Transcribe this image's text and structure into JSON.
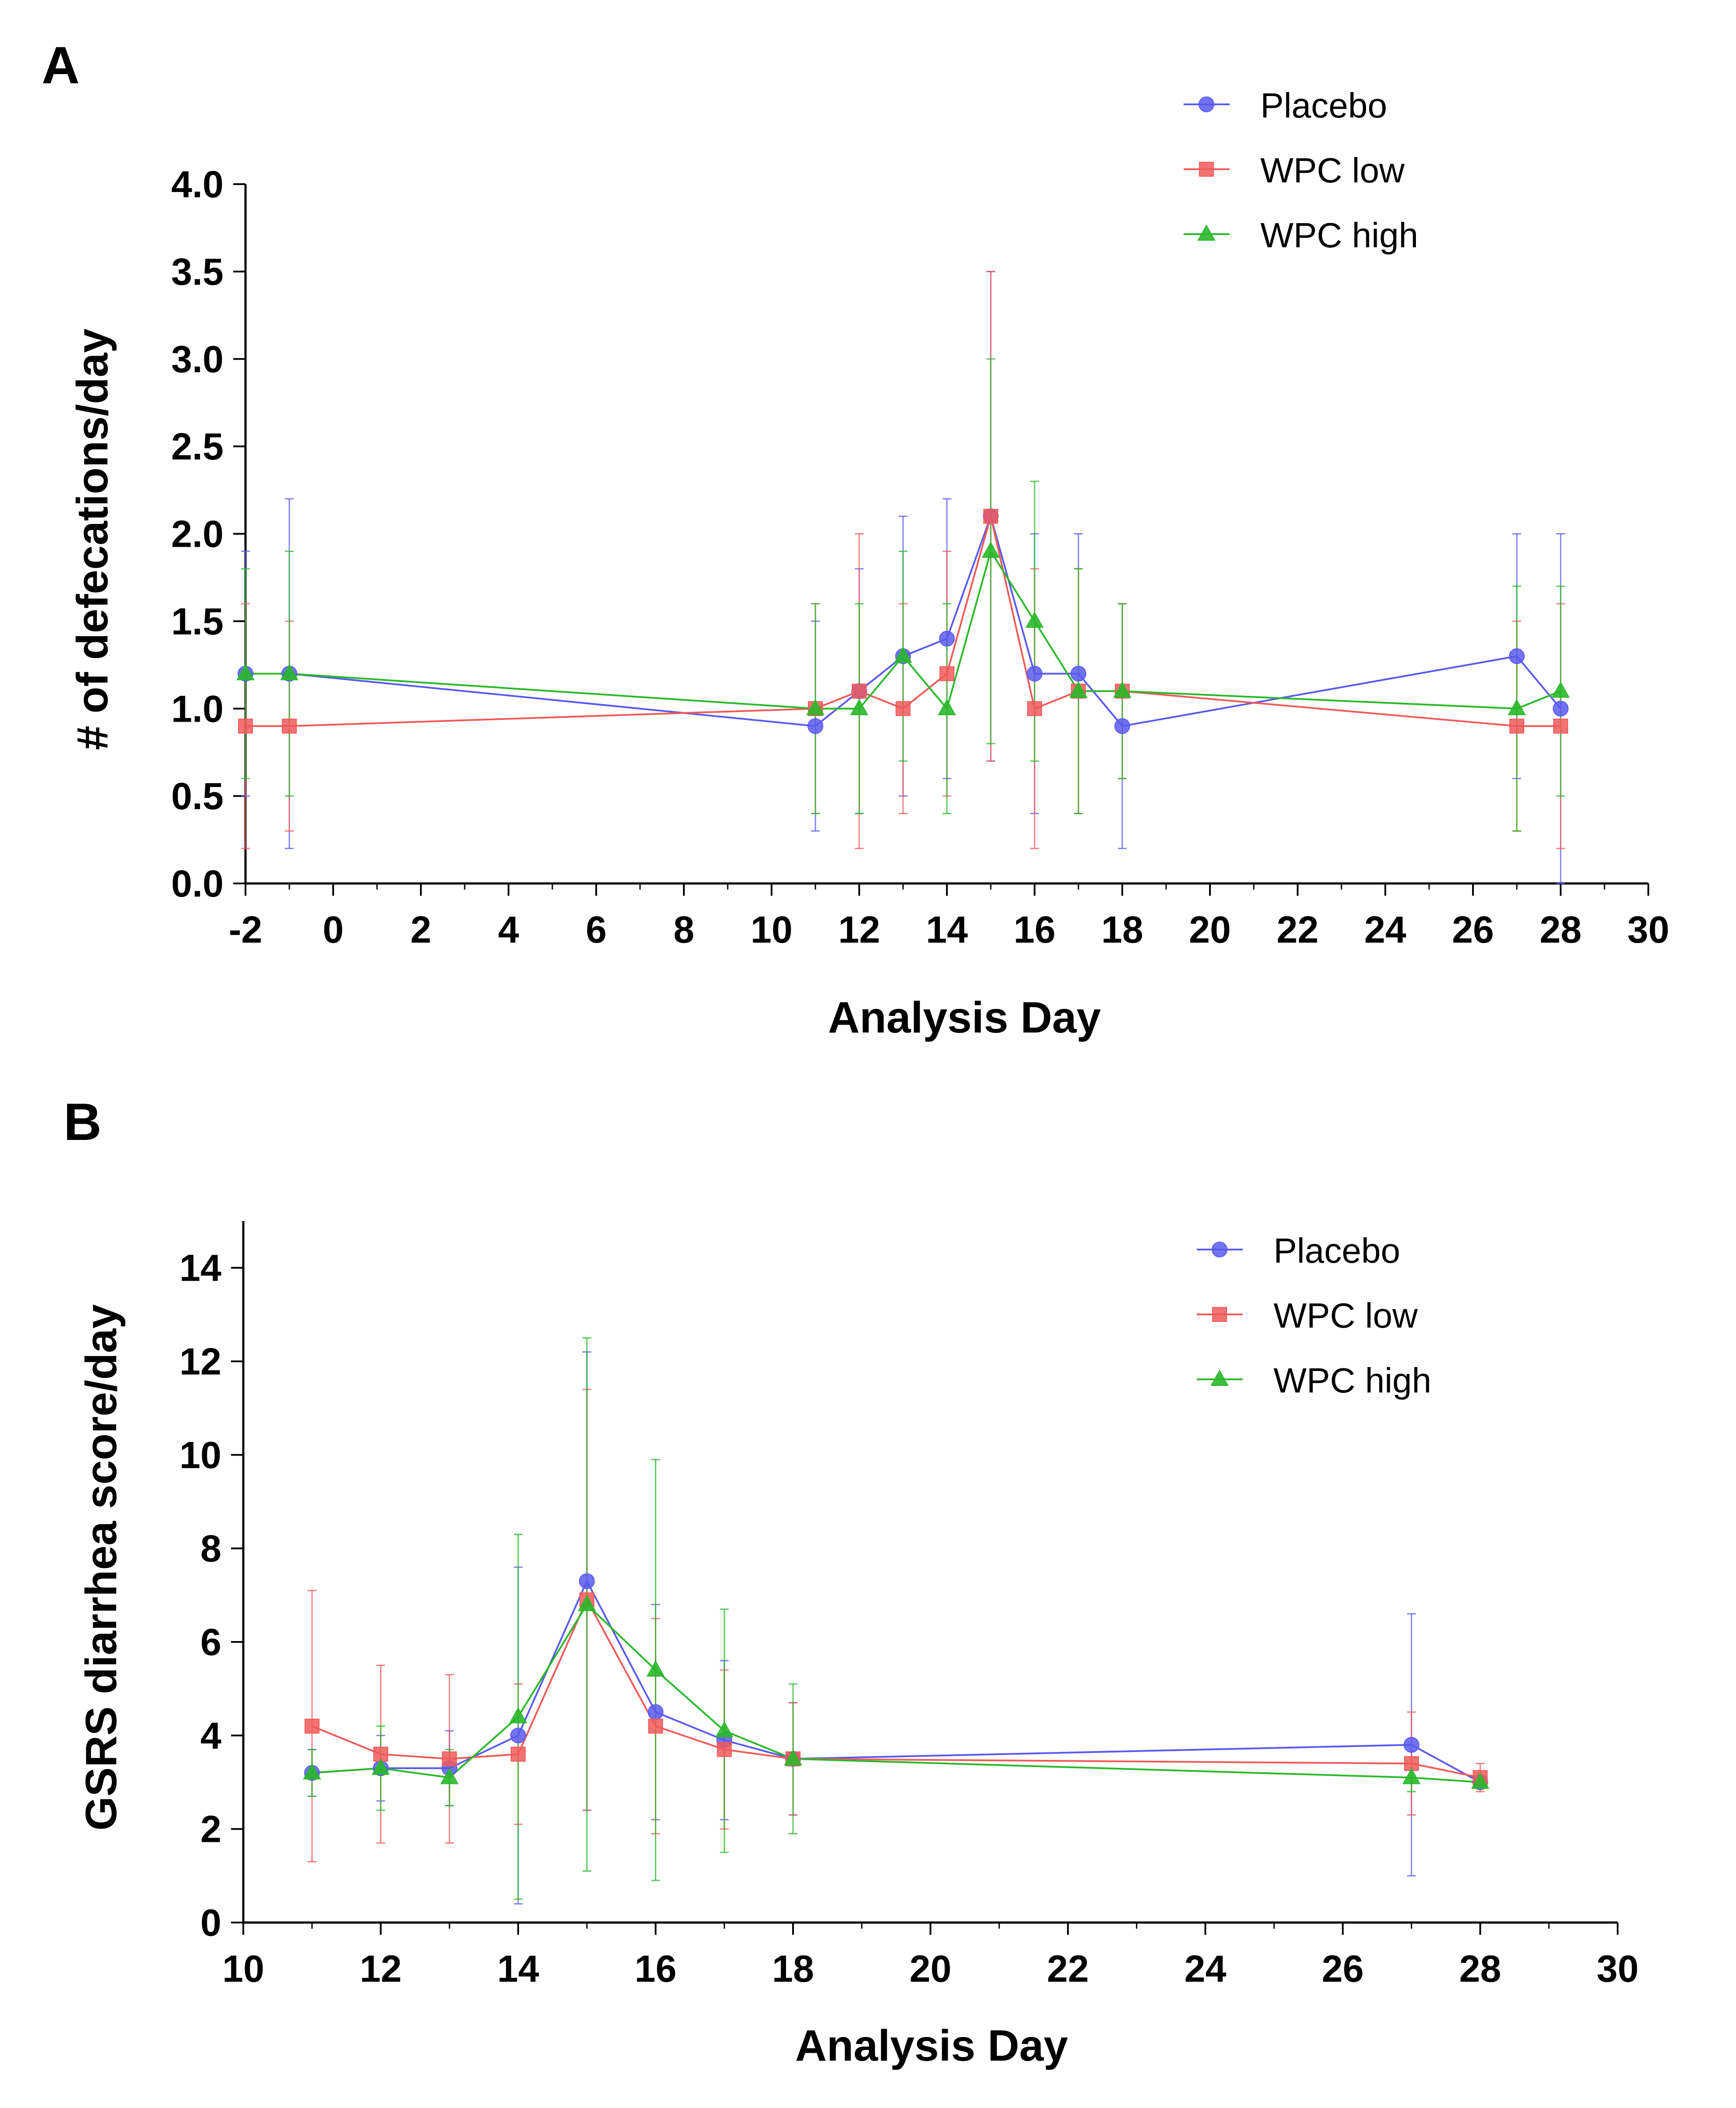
{
  "chart_data": [
    {
      "panel": "A",
      "type": "line",
      "xlabel": "Analysis Day",
      "ylabel": "# of defecations/day",
      "xlim": [
        -2,
        30
      ],
      "ylim": [
        0,
        4
      ],
      "xticks": [
        -2,
        0,
        2,
        4,
        6,
        8,
        10,
        12,
        14,
        16,
        18,
        20,
        22,
        24,
        26,
        28,
        30
      ],
      "xtick_labels": [
        "-2",
        "0",
        "2",
        "4",
        "6",
        "8",
        "10",
        "12",
        "14",
        "16",
        "18",
        "20",
        "22",
        "24",
        "26",
        "28",
        "30"
      ],
      "yticks": [
        0,
        0.5,
        1,
        1.5,
        2,
        2.5,
        3,
        3.5,
        4
      ],
      "ytick_labels": [
        "0.0",
        "0.5",
        "1.0",
        "1.5",
        "2.0",
        "2.5",
        "3.0",
        "3.5",
        "4.0"
      ],
      "legend_position": "top-right",
      "series": [
        {
          "name": "Placebo",
          "color": "#5a5af0",
          "marker": "circle",
          "x": [
            -2,
            -1,
            11,
            12,
            13,
            14,
            15,
            16,
            17,
            18,
            27,
            28
          ],
          "values": [
            1.2,
            1.2,
            0.9,
            1.1,
            1.3,
            1.4,
            2.1,
            1.2,
            1.2,
            0.9,
            1.3,
            1.0
          ],
          "err_low": [
            0.5,
            0.2,
            0.3,
            0.4,
            0.5,
            0.6,
            0.7,
            0.4,
            0.4,
            0.2,
            0.6,
            0.0
          ],
          "err_high": [
            1.9,
            2.2,
            1.5,
            1.8,
            2.1,
            2.2,
            3.5,
            2.0,
            2.0,
            1.6,
            2.0,
            2.0
          ]
        },
        {
          "name": "WPC low",
          "color": "#f05a5a",
          "marker": "square",
          "x": [
            -2,
            -1,
            11,
            12,
            13,
            14,
            15,
            16,
            17,
            18,
            27,
            28
          ],
          "values": [
            0.9,
            0.9,
            1.0,
            1.1,
            1.0,
            1.2,
            2.1,
            1.0,
            1.1,
            1.1,
            0.9,
            0.9
          ],
          "err_low": [
            0.2,
            0.3,
            0.4,
            0.2,
            0.4,
            0.5,
            0.7,
            0.2,
            0.4,
            0.6,
            0.3,
            0.2
          ],
          "err_high": [
            1.6,
            1.5,
            1.6,
            2.0,
            1.6,
            1.9,
            3.5,
            1.8,
            1.8,
            1.6,
            1.5,
            1.6
          ]
        },
        {
          "name": "WPC high",
          "color": "#2ab82a",
          "marker": "triangle",
          "x": [
            -2,
            -1,
            11,
            12,
            13,
            14,
            15,
            16,
            17,
            18,
            27,
            28
          ],
          "values": [
            1.2,
            1.2,
            1.0,
            1.0,
            1.3,
            1.0,
            1.9,
            1.5,
            1.1,
            1.1,
            1.0,
            1.1
          ],
          "err_low": [
            0.6,
            0.5,
            0.4,
            0.4,
            0.7,
            0.4,
            0.8,
            0.7,
            0.4,
            0.6,
            0.3,
            0.5
          ],
          "err_high": [
            1.8,
            1.9,
            1.6,
            1.6,
            1.9,
            1.6,
            3.0,
            2.3,
            1.8,
            1.6,
            1.7,
            1.7
          ]
        }
      ]
    },
    {
      "panel": "B",
      "type": "line",
      "xlabel": "Analysis Day",
      "ylabel": "GSRS diarrhea score/day",
      "xlim": [
        10,
        30
      ],
      "ylim": [
        0,
        15
      ],
      "xticks": [
        10,
        12,
        14,
        16,
        18,
        20,
        22,
        24,
        26,
        28,
        30
      ],
      "xtick_labels": [
        "10",
        "12",
        "14",
        "16",
        "18",
        "20",
        "22",
        "24",
        "26",
        "28",
        "30"
      ],
      "yticks": [
        0,
        2,
        4,
        6,
        8,
        10,
        12,
        14
      ],
      "ytick_labels": [
        "0",
        "2",
        "4",
        "6",
        "8",
        "10",
        "12",
        "14"
      ],
      "legend_position": "top-right",
      "series": [
        {
          "name": "Placebo",
          "color": "#5a5af0",
          "marker": "circle",
          "x": [
            11,
            12,
            13,
            14,
            15,
            16,
            17,
            18,
            27,
            28
          ],
          "values": [
            3.2,
            3.3,
            3.3,
            4.0,
            7.3,
            4.5,
            3.9,
            3.5,
            3.8,
            3.0
          ],
          "err_low": [
            2.7,
            2.6,
            2.5,
            0.4,
            2.4,
            2.2,
            2.2,
            2.3,
            1.0,
            2.9
          ],
          "err_high": [
            3.7,
            4.0,
            4.1,
            7.6,
            12.2,
            6.8,
            5.6,
            4.7,
            6.6,
            3.1
          ]
        },
        {
          "name": "WPC low",
          "color": "#f05a5a",
          "marker": "square",
          "x": [
            11,
            12,
            13,
            14,
            15,
            16,
            17,
            18,
            27,
            28
          ],
          "values": [
            4.2,
            3.6,
            3.5,
            3.6,
            6.9,
            4.2,
            3.7,
            3.5,
            3.4,
            3.1
          ],
          "err_low": [
            1.3,
            1.7,
            1.7,
            2.1,
            2.4,
            1.9,
            2.0,
            2.3,
            2.3,
            2.8
          ],
          "err_high": [
            7.1,
            5.5,
            5.3,
            5.1,
            11.4,
            6.5,
            5.4,
            4.7,
            4.5,
            3.4
          ]
        },
        {
          "name": "WPC high",
          "color": "#2ab82a",
          "marker": "triangle",
          "x": [
            11,
            12,
            13,
            14,
            15,
            16,
            17,
            18,
            27,
            28
          ],
          "values": [
            3.2,
            3.3,
            3.1,
            4.4,
            6.8,
            5.4,
            4.1,
            3.5,
            3.1,
            3.0
          ],
          "err_low": [
            2.7,
            2.4,
            2.5,
            0.5,
            1.1,
            0.9,
            1.5,
            1.9,
            2.8,
            2.9
          ],
          "err_high": [
            3.7,
            4.2,
            3.7,
            8.3,
            12.5,
            9.9,
            6.7,
            5.1,
            3.4,
            3.1
          ]
        }
      ]
    }
  ]
}
